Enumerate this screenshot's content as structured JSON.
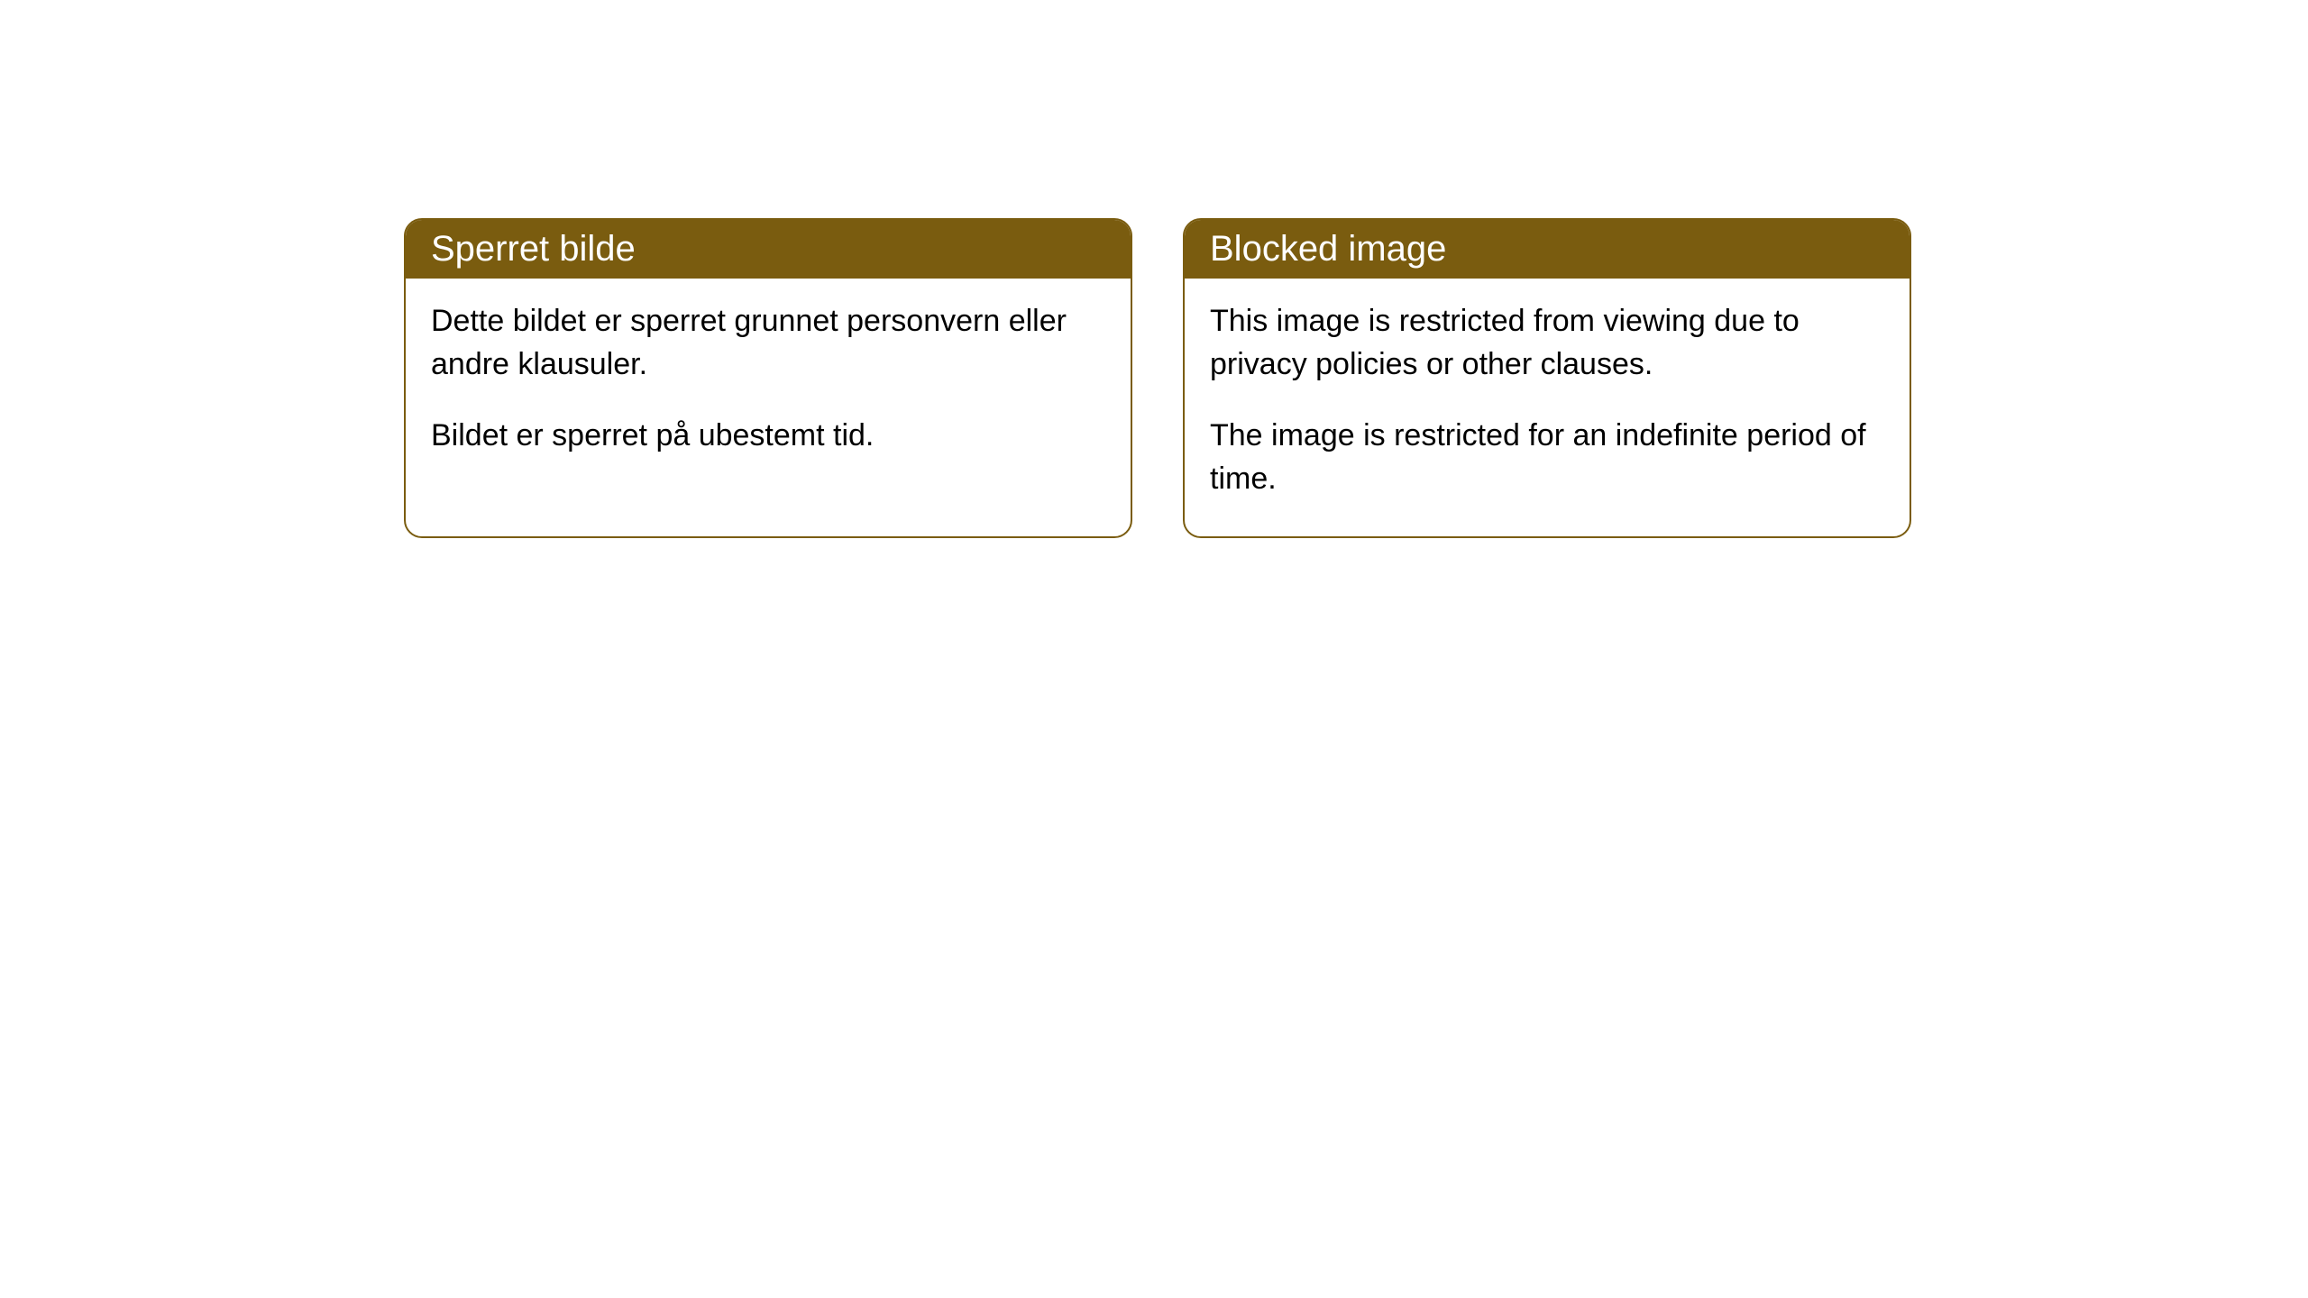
{
  "cards": [
    {
      "title": "Sperret bilde",
      "paragraph1": "Dette bildet er sperret grunnet personvern eller andre klausuler.",
      "paragraph2": "Bildet er sperret på ubestemt tid."
    },
    {
      "title": "Blocked image",
      "paragraph1": "This image is restricted from viewing due to privacy policies or other clauses.",
      "paragraph2": "The image is restricted for an indefinite period of time."
    }
  ],
  "style": {
    "header_background": "#7a5c0f",
    "header_text_color": "#ffffff",
    "border_color": "#7a5c0f",
    "body_background": "#ffffff",
    "body_text_color": "#000000",
    "border_radius": 20,
    "header_fontsize": 40,
    "body_fontsize": 34
  }
}
